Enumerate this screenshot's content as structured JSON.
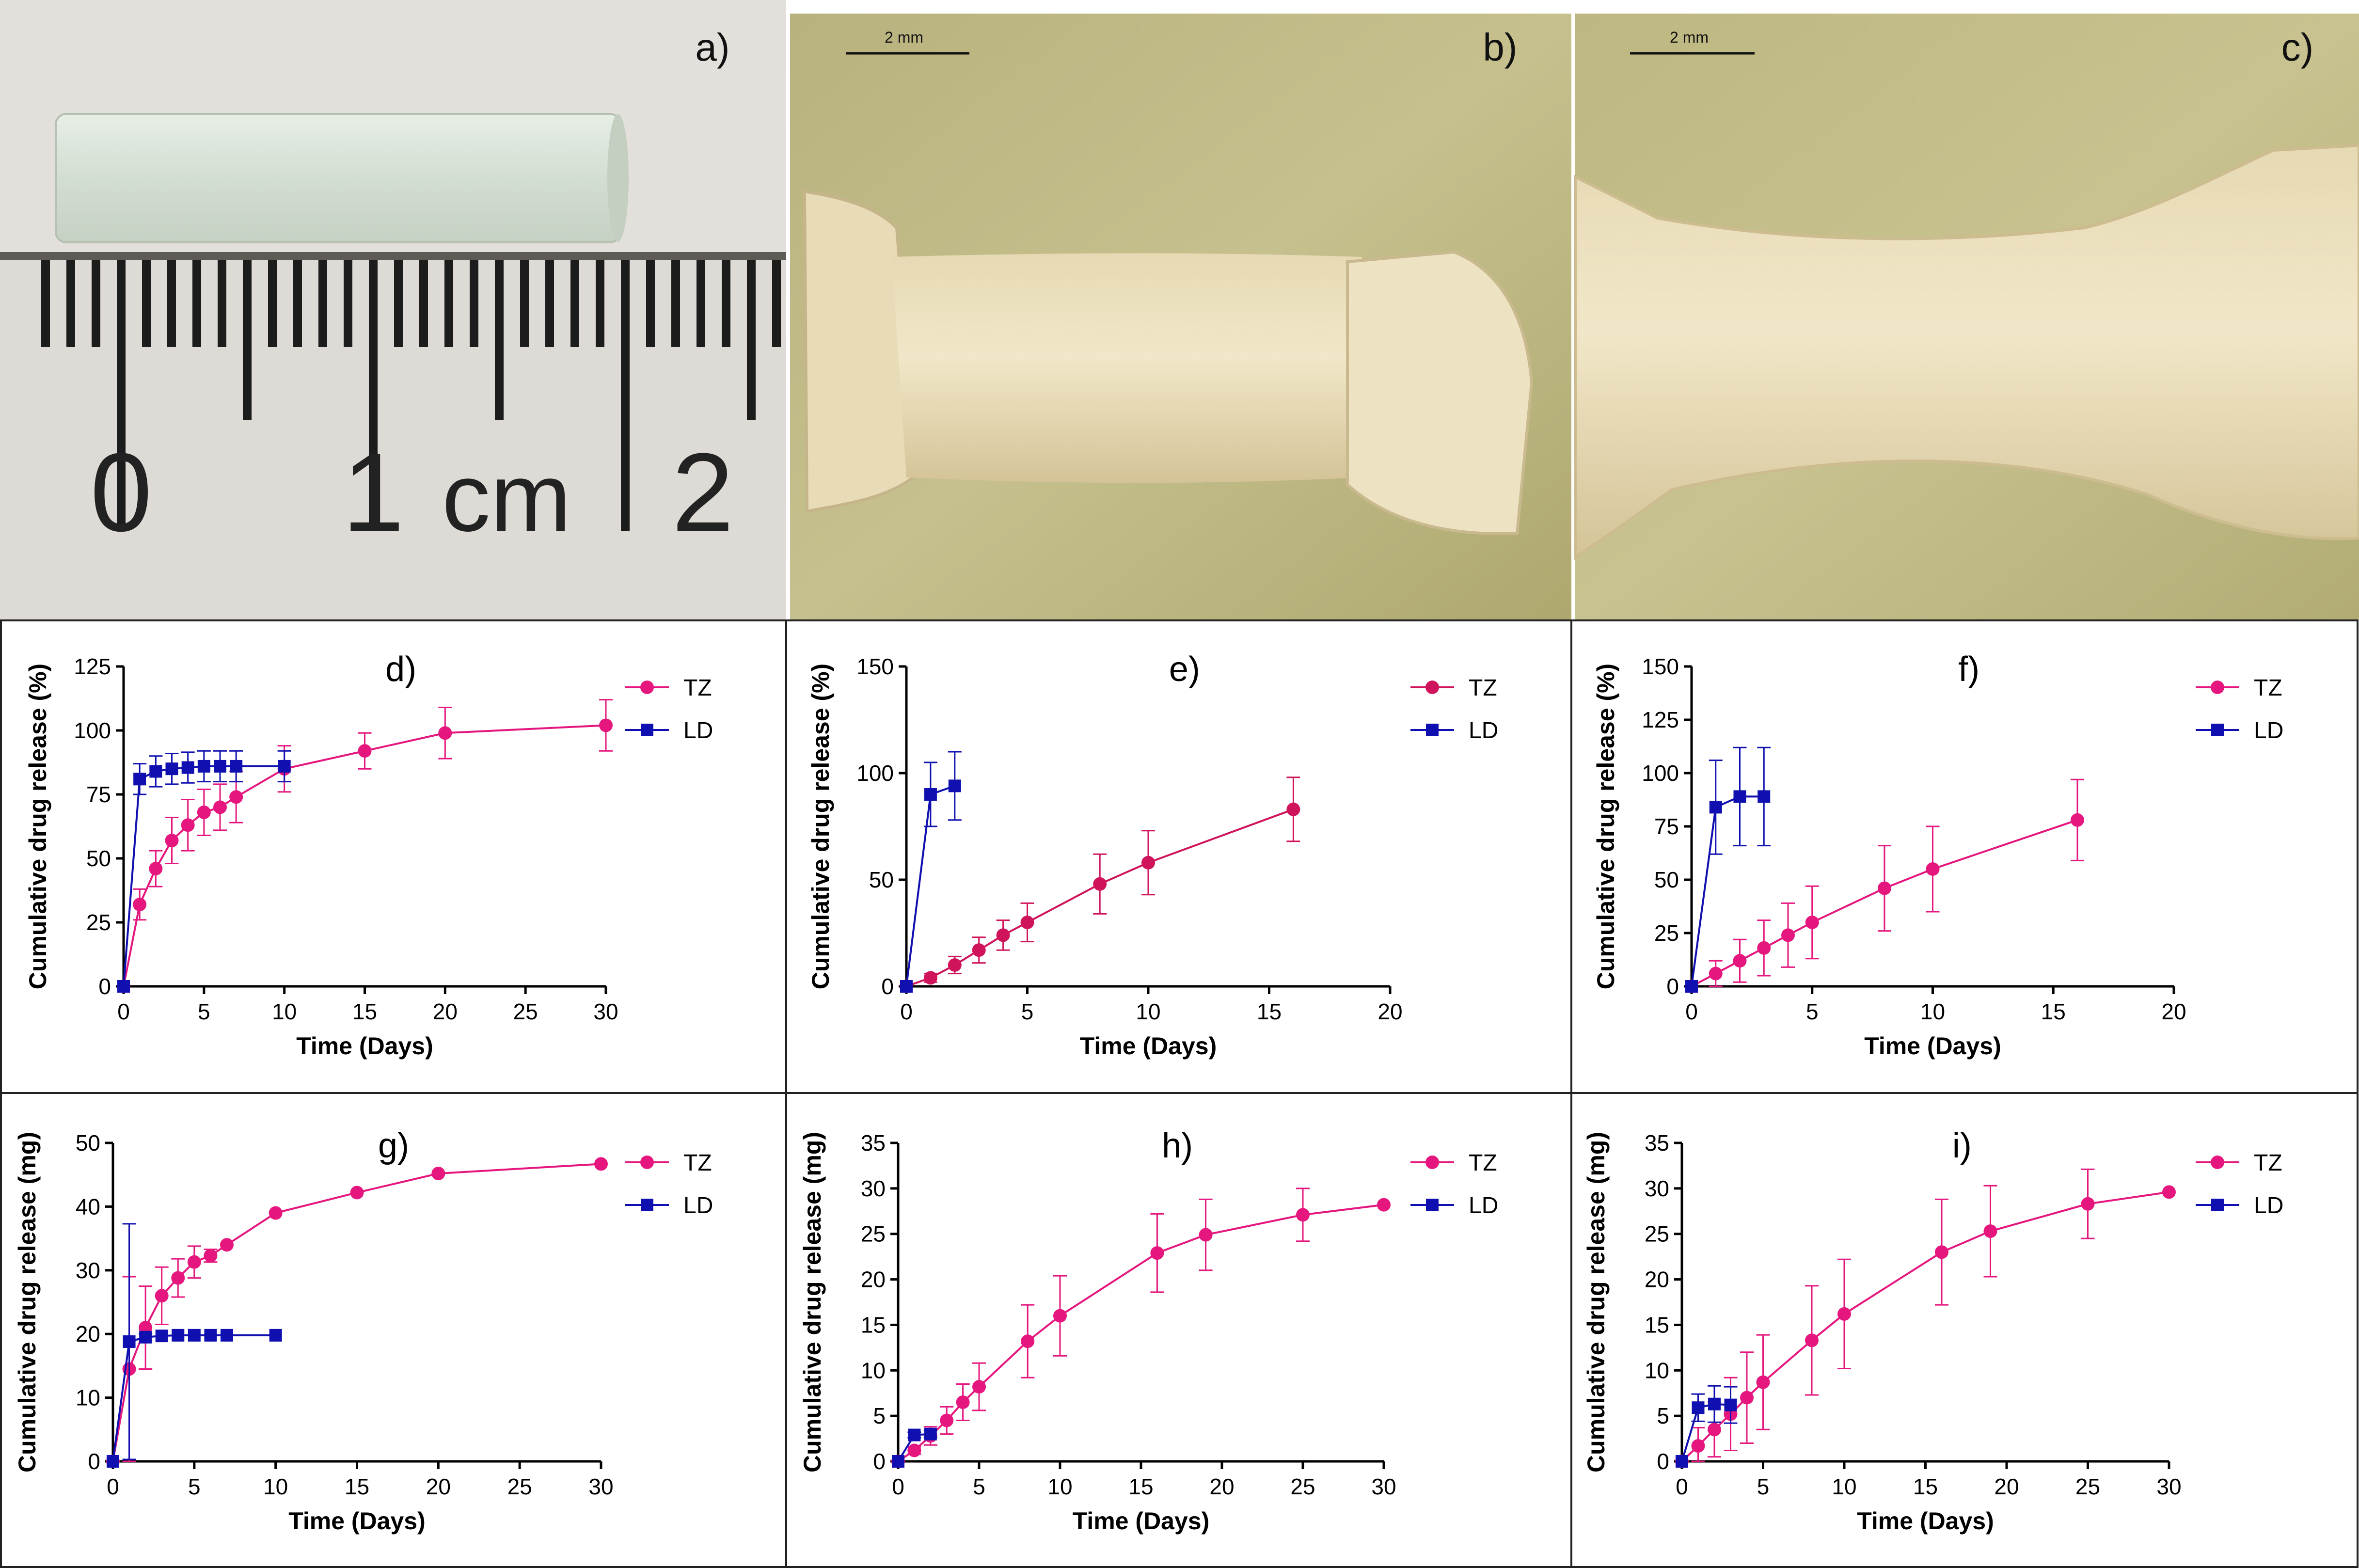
{
  "figure": {
    "panels": {
      "a": {
        "letter": "a)",
        "ruler_labels": [
          "0",
          "1",
          "cm",
          "2"
        ]
      },
      "b": {
        "letter": "b)",
        "scale_label": "2 mm"
      },
      "c": {
        "letter": "c)",
        "scale_label": "2 mm"
      }
    }
  },
  "colors": {
    "TZ": "#e5177f",
    "TZ_dark": "#d0145c",
    "LD": "#1010b0"
  },
  "chart_data": [
    {
      "id": "d",
      "letter": "d)",
      "type": "line",
      "xlabel": "Time (Days)",
      "ylabel": "Cumulative drug release (%)",
      "xlim": [
        0,
        30
      ],
      "ylim": [
        0,
        125
      ],
      "xticks": [
        0,
        5,
        10,
        15,
        20,
        25,
        30
      ],
      "yticks": [
        0,
        25,
        50,
        75,
        100,
        125
      ],
      "legend": [
        "TZ",
        "LD"
      ],
      "series": [
        {
          "name": "TZ",
          "marker": "circle",
          "x": [
            0,
            1,
            2,
            3,
            4,
            5,
            6,
            7,
            10,
            15,
            20,
            30
          ],
          "y": [
            0,
            32,
            46,
            57,
            63,
            68,
            70,
            74,
            85,
            92,
            99,
            102
          ],
          "err": [
            0,
            6,
            7,
            9,
            10,
            9,
            9,
            10,
            9,
            7,
            10,
            10
          ]
        },
        {
          "name": "LD",
          "marker": "square",
          "x": [
            0,
            1,
            2,
            3,
            4,
            5,
            6,
            7,
            10
          ],
          "y": [
            0,
            81,
            84,
            85,
            85.5,
            86,
            86,
            86,
            86
          ],
          "err": [
            0,
            6,
            6,
            6,
            6,
            6,
            6,
            6,
            6
          ]
        }
      ]
    },
    {
      "id": "e",
      "letter": "e)",
      "type": "line",
      "xlabel": "Time (Days)",
      "ylabel": "Cumulative drug release (%)",
      "xlim": [
        0,
        20
      ],
      "ylim": [
        0,
        150
      ],
      "xticks": [
        0,
        5,
        10,
        15,
        20
      ],
      "yticks": [
        0,
        50,
        100,
        150
      ],
      "legend": [
        "TZ",
        "LD"
      ],
      "series": [
        {
          "name": "TZ",
          "marker": "circle",
          "dark": true,
          "x": [
            0,
            1,
            2,
            3,
            4,
            5,
            8,
            10,
            16
          ],
          "y": [
            0,
            4,
            10,
            17,
            24,
            30,
            48,
            58,
            83
          ],
          "err": [
            0,
            2,
            4,
            6,
            7,
            9,
            14,
            15,
            15
          ]
        },
        {
          "name": "LD",
          "marker": "square",
          "x": [
            0,
            1,
            2
          ],
          "y": [
            0,
            90,
            94
          ],
          "err": [
            0,
            15,
            16
          ]
        }
      ]
    },
    {
      "id": "f",
      "letter": "f)",
      "type": "line",
      "xlabel": "Time (Days)",
      "ylabel": "Cumulative drug release (%)",
      "xlim": [
        0,
        20
      ],
      "ylim": [
        0,
        150
      ],
      "xticks": [
        0,
        5,
        10,
        15,
        20
      ],
      "yticks": [
        0,
        25,
        50,
        75,
        100,
        125,
        150
      ],
      "legend": [
        "TZ",
        "LD"
      ],
      "series": [
        {
          "name": "TZ",
          "marker": "circle",
          "x": [
            0,
            1,
            2,
            3,
            4,
            5,
            8,
            10,
            16
          ],
          "y": [
            0,
            6,
            12,
            18,
            24,
            30,
            46,
            55,
            78
          ],
          "err": [
            0,
            6,
            10,
            13,
            15,
            17,
            20,
            20,
            19
          ]
        },
        {
          "name": "LD",
          "marker": "square",
          "x": [
            0,
            1,
            2,
            3
          ],
          "y": [
            0,
            84,
            89,
            89
          ],
          "err": [
            0,
            22,
            23,
            23
          ]
        }
      ]
    },
    {
      "id": "g",
      "letter": "g)",
      "type": "line",
      "xlabel": "Time (Days)",
      "ylabel": "Cumulative drug release (mg)",
      "xlim": [
        0,
        30
      ],
      "ylim": [
        0,
        50
      ],
      "xticks": [
        0,
        5,
        10,
        15,
        20,
        25,
        30
      ],
      "yticks": [
        0,
        10,
        20,
        30,
        40,
        50
      ],
      "legend": [
        "TZ",
        "LD"
      ],
      "series": [
        {
          "name": "TZ",
          "marker": "circle",
          "x": [
            0,
            1,
            2,
            3,
            4,
            5,
            6,
            7,
            10,
            15,
            20,
            30
          ],
          "y": [
            0,
            14.5,
            21,
            26,
            28.8,
            31.3,
            32.3,
            34,
            39,
            42.2,
            45.2,
            46.7
          ],
          "err": [
            0,
            14.5,
            6.5,
            4.5,
            3,
            2.5,
            1,
            0,
            0,
            0,
            0,
            0
          ]
        },
        {
          "name": "LD",
          "marker": "square",
          "x": [
            0,
            1,
            2,
            3,
            4,
            5,
            6,
            7,
            10
          ],
          "y": [
            0,
            18.8,
            19.5,
            19.7,
            19.8,
            19.8,
            19.8,
            19.8,
            19.8
          ],
          "err": [
            0,
            18.5,
            0.5,
            0,
            0,
            0,
            0,
            0,
            0
          ]
        }
      ]
    },
    {
      "id": "h",
      "letter": "h)",
      "type": "line",
      "xlabel": "Time (Days)",
      "ylabel": "Cumulative drug release (mg)",
      "xlim": [
        0,
        30
      ],
      "ylim": [
        0,
        35
      ],
      "xticks": [
        0,
        5,
        10,
        15,
        20,
        25,
        30
      ],
      "yticks": [
        0,
        5,
        10,
        15,
        20,
        25,
        30,
        35
      ],
      "legend": [
        "TZ",
        "LD"
      ],
      "series": [
        {
          "name": "TZ",
          "marker": "circle",
          "x": [
            0,
            1,
            2,
            3,
            4,
            5,
            8,
            10,
            16,
            19,
            25,
            30
          ],
          "y": [
            0,
            1.2,
            2.8,
            4.5,
            6.5,
            8.2,
            13.2,
            16,
            22.9,
            24.9,
            27.1,
            28.2
          ],
          "err": [
            0,
            0.4,
            1,
            1.5,
            2,
            2.6,
            4,
            4.4,
            4.3,
            3.9,
            2.9,
            null
          ]
        },
        {
          "name": "LD",
          "marker": "square",
          "x": [
            0,
            1,
            2
          ],
          "y": [
            0,
            2.9,
            3
          ],
          "err": [
            0,
            0.3,
            0.4
          ]
        }
      ]
    },
    {
      "id": "i",
      "letter": "i)",
      "type": "line",
      "xlabel": "Time (Days)",
      "ylabel": "Cumulative drug release (mg)",
      "xlim": [
        0,
        30
      ],
      "ylim": [
        0,
        35
      ],
      "xticks": [
        0,
        5,
        10,
        15,
        20,
        25,
        30
      ],
      "yticks": [
        0,
        5,
        10,
        15,
        20,
        25,
        30,
        35
      ],
      "legend": [
        "TZ",
        "LD"
      ],
      "series": [
        {
          "name": "TZ",
          "marker": "circle",
          "x": [
            0,
            1,
            2,
            3,
            4,
            5,
            8,
            10,
            16,
            19,
            25,
            30
          ],
          "y": [
            0,
            1.7,
            3.5,
            5.2,
            7,
            8.7,
            13.3,
            16.2,
            23,
            25.3,
            28.3,
            29.6
          ],
          "err": [
            0,
            2,
            3,
            4,
            5,
            5.2,
            6,
            6,
            5.8,
            5,
            3.8,
            null
          ]
        },
        {
          "name": "LD",
          "marker": "square",
          "x": [
            0,
            1,
            2,
            3
          ],
          "y": [
            0,
            5.9,
            6.3,
            6.2
          ],
          "err": [
            0,
            1.5,
            2,
            2
          ]
        }
      ]
    }
  ]
}
